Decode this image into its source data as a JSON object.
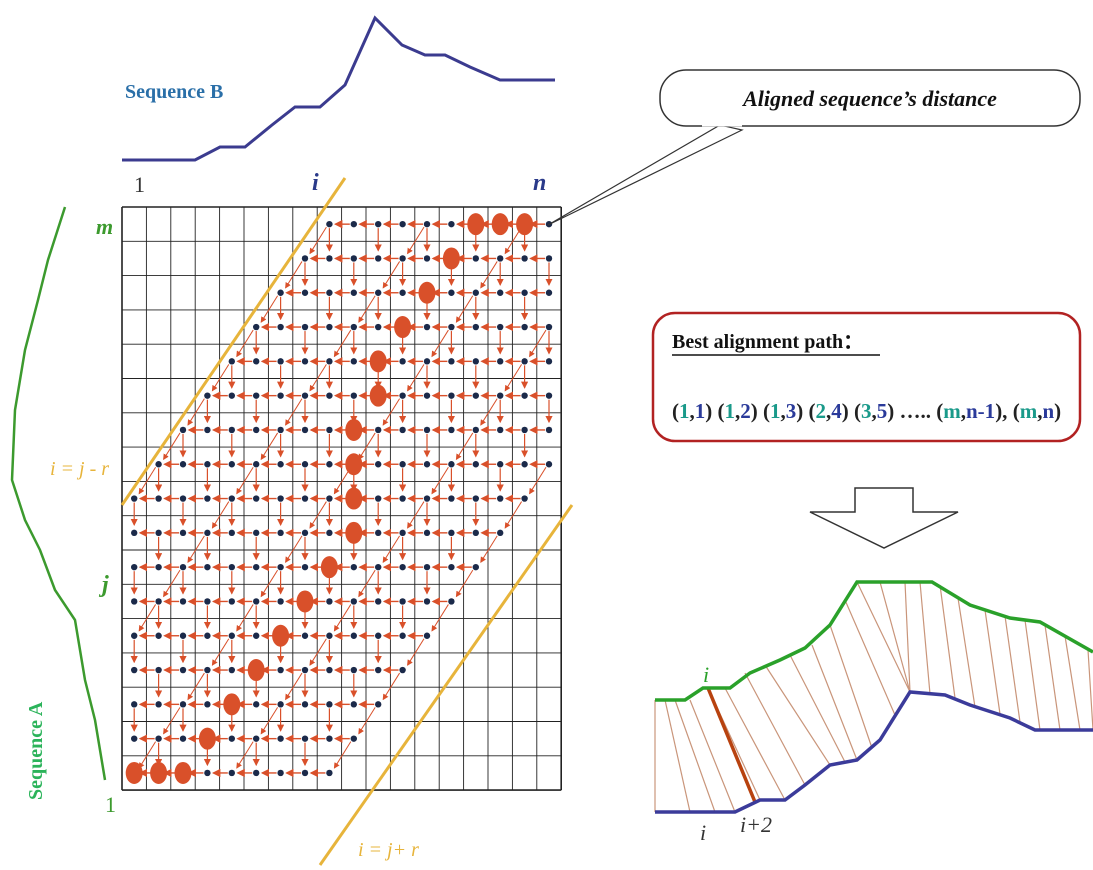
{
  "labels": {
    "sequence_b": "Sequence B",
    "sequence_a": "Sequence A",
    "callout": "Aligned sequence’s distance",
    "col_first": "1",
    "col_i": "i",
    "col_n": "n",
    "row_m": "m",
    "row_j": "j",
    "row_first": "1",
    "band_upper": "i = j - r",
    "band_lower": "i = j+ r",
    "warp_i_top": "i",
    "warp_i_bottom": "i",
    "warp_i_plus_2": "i+2"
  },
  "best_path_box": {
    "title": "Best alignment path：",
    "pairs": [
      {
        "a": "1",
        "b": "1"
      },
      {
        "a": "1",
        "b": "2"
      },
      {
        "a": "1",
        "b": "3"
      },
      {
        "a": "2",
        "b": "4"
      },
      {
        "a": "3",
        "b": "5"
      },
      {
        "text": "….."
      },
      {
        "a": "m",
        "b": "n-1"
      },
      {
        "a": "m",
        "b": "n"
      }
    ]
  },
  "colors": {
    "sequence_b": "#3b3b8f",
    "sequence_a": "#3c9a2e",
    "label_blue": "#2a6fa8",
    "band": "#e7b43b",
    "path": "#d9502a",
    "dot": "#1b2a4a",
    "box_border": "#b22222",
    "pair_green": "#1a9a8a",
    "pair_blue": "#2a3a9a"
  }
}
